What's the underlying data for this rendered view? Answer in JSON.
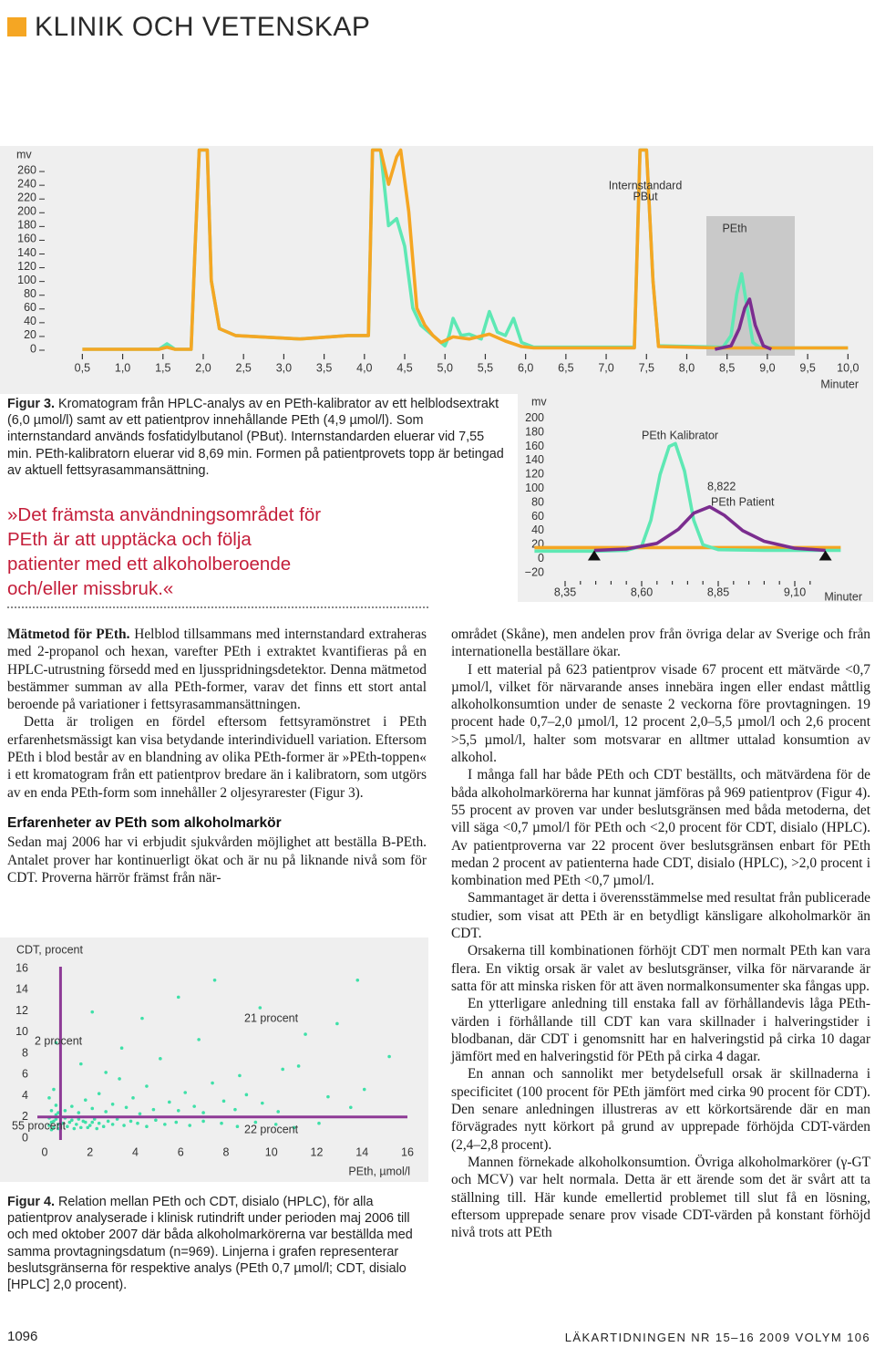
{
  "header": {
    "title": "KLINIK OCH VETENSKAP"
  },
  "chart_data": [
    {
      "type": "line",
      "y_label": "mv",
      "x_label": "Minuter",
      "xlim": [
        0.1,
        10.2
      ],
      "ylim": [
        0,
        280
      ],
      "yticks": [
        0,
        20,
        40,
        60,
        80,
        100,
        120,
        140,
        160,
        180,
        200,
        220,
        240,
        260
      ],
      "xticks": [
        {
          "value": 0.5,
          "label": "0,5"
        },
        {
          "value": 1.0,
          "label": "1,0"
        },
        {
          "value": 1.5,
          "label": "1,5"
        },
        {
          "value": 2.0,
          "label": "2,0"
        },
        {
          "value": 2.5,
          "label": "2,5"
        },
        {
          "value": 3.0,
          "label": "3,0"
        },
        {
          "value": 3.5,
          "label": "3,5"
        },
        {
          "value": 4.0,
          "label": "4,0"
        },
        {
          "value": 4.5,
          "label": "4,5"
        },
        {
          "value": 5.0,
          "label": "5,0"
        },
        {
          "value": 5.5,
          "label": "5,5"
        },
        {
          "value": 6.0,
          "label": "6,0"
        },
        {
          "value": 6.5,
          "label": "6,5"
        },
        {
          "value": 7.0,
          "label": "7,0"
        },
        {
          "value": 7.5,
          "label": "7,5"
        },
        {
          "value": 8.0,
          "label": "8,0"
        },
        {
          "value": 8.5,
          "label": "8,5"
        },
        {
          "value": 9.0,
          "label": "9,0"
        },
        {
          "value": 9.5,
          "label": "9,5"
        },
        {
          "value": 10.0,
          "label": "10,0"
        }
      ],
      "annotations": [
        "Internstandard",
        "PBut",
        "PEth"
      ],
      "series": [
        {
          "color": "#5ee8b4",
          "x": [
            0.5,
            1.45,
            1.55,
            1.65,
            1.85,
            1.9,
            1.95,
            2.05,
            2.1,
            2.2,
            2.4,
            3.2,
            3.8,
            4.05,
            4.1,
            4.2,
            4.3,
            4.4,
            4.5,
            4.6,
            4.7,
            4.8,
            4.9,
            5.0,
            5.05,
            5.1,
            5.2,
            5.3,
            5.45,
            5.55,
            5.65,
            5.75,
            5.85,
            5.95,
            6.1,
            7.35,
            7.42,
            7.5,
            7.58,
            7.65,
            8.45,
            8.55,
            8.62,
            8.68,
            8.75,
            8.82,
            8.9,
            9.1,
            10.0
          ],
          "values": [
            0,
            0,
            8,
            0,
            0,
            150,
            290,
            290,
            100,
            30,
            20,
            15,
            20,
            20,
            290,
            290,
            180,
            190,
            150,
            60,
            35,
            25,
            15,
            5,
            20,
            45,
            20,
            22,
            15,
            55,
            25,
            20,
            45,
            10,
            3,
            3,
            290,
            290,
            100,
            5,
            3,
            20,
            80,
            110,
            60,
            10,
            3,
            2,
            2
          ]
        },
        {
          "color": "#f5a623",
          "x": [
            0.5,
            1.45,
            1.55,
            1.65,
            1.85,
            1.9,
            1.95,
            2.05,
            2.1,
            2.2,
            2.4,
            3.2,
            3.8,
            4.05,
            4.1,
            4.2,
            4.3,
            4.4,
            4.45,
            4.55,
            4.65,
            4.75,
            4.85,
            4.95,
            5.1,
            5.3,
            5.55,
            5.75,
            5.95,
            6.1,
            7.35,
            7.42,
            7.5,
            7.58,
            7.65,
            8.4,
            9.1,
            10.0
          ],
          "values": [
            0,
            0,
            3,
            0,
            0,
            150,
            290,
            290,
            100,
            30,
            20,
            15,
            20,
            20,
            290,
            290,
            240,
            280,
            290,
            200,
            60,
            35,
            20,
            10,
            18,
            15,
            22,
            12,
            4,
            2,
            2,
            290,
            290,
            100,
            4,
            2,
            2,
            2
          ]
        },
        {
          "color": "#7b2d8f",
          "x": [
            8.35,
            8.55,
            8.65,
            8.72,
            8.78,
            8.85,
            8.95,
            9.05
          ],
          "values": [
            0,
            5,
            30,
            60,
            73,
            35,
            5,
            0
          ]
        }
      ]
    },
    {
      "type": "line",
      "y_label": "mv",
      "x_label": "Minuter",
      "xlim": [
        8.25,
        9.25
      ],
      "ylim": [
        -25,
        210
      ],
      "yticks": [
        {
          "value": -20,
          "label": "−20"
        },
        0,
        20,
        40,
        60,
        80,
        100,
        120,
        140,
        160,
        180,
        200
      ],
      "xticks": [
        {
          "value": 8.35,
          "label": "8,35"
        },
        {
          "value": 8.6,
          "label": "8,60"
        },
        {
          "value": 8.85,
          "label": "8,85"
        },
        {
          "value": 9.1,
          "label": "9,10"
        }
      ],
      "x_minor_ticks": [
        8.4,
        8.45,
        8.5,
        8.55,
        8.65,
        8.7,
        8.75,
        8.8,
        8.9,
        8.95,
        9.0,
        9.05,
        9.15
      ],
      "annotations": [
        "PEth Kalibrator",
        "8,822",
        "PEth Patient"
      ],
      "baseline_markers": {
        "x": [
          8.445,
          9.2
        ],
        "values": [
          12,
          12
        ]
      },
      "series": [
        {
          "color": "#f5a623",
          "x": [
            8.25,
            9.25
          ],
          "values": [
            16,
            16
          ]
        },
        {
          "color": "#5ee8b4",
          "x": [
            8.25,
            8.45,
            8.55,
            8.6,
            8.63,
            8.66,
            8.69,
            8.71,
            8.74,
            8.77,
            8.8,
            8.85,
            9.0,
            9.25
          ],
          "values": [
            11,
            11,
            12,
            18,
            55,
            120,
            160,
            164,
            125,
            55,
            20,
            13,
            12,
            12
          ]
        },
        {
          "color": "#7b2d8f",
          "x": [
            8.445,
            8.55,
            8.65,
            8.72,
            8.77,
            8.822,
            8.87,
            8.93,
            9.0,
            9.1,
            9.2
          ],
          "values": [
            12,
            14,
            22,
            42,
            65,
            74,
            62,
            40,
            25,
            15,
            12
          ]
        }
      ]
    },
    {
      "type": "scatter",
      "y_label": "CDT, procent",
      "x_label": "PEth, µmol/l",
      "xlim": [
        0,
        16
      ],
      "ylim": [
        0,
        16
      ],
      "xticks": [
        0,
        2,
        4,
        6,
        8,
        10,
        12,
        14,
        16
      ],
      "yticks": [
        0,
        2,
        4,
        6,
        8,
        10,
        12,
        14,
        16
      ],
      "color": "#3ee0a8",
      "threshold_color": "#8e3a96",
      "thresholds": {
        "x": 0.7,
        "y": 2.0
      },
      "annotations": [
        "2 procent",
        "21 procent",
        "22 procent",
        "55 procent"
      ],
      "x": [
        0.2,
        0.3,
        0.4,
        0.5,
        0.6,
        0.3,
        0.5,
        0.2,
        0.6,
        0.4,
        0.8,
        1.0,
        1.2,
        1.4,
        1.6,
        1.8,
        2.0,
        2.2,
        2.4,
        2.6,
        0.9,
        1.1,
        1.3,
        1.5,
        1.7,
        1.9,
        2.1,
        2.3,
        2.8,
        3.0,
        3.2,
        3.5,
        3.8,
        4.1,
        4.5,
        4.9,
        5.3,
        5.8,
        6.4,
        7.0,
        7.8,
        8.5,
        9.3,
        10.2,
        11.0,
        12.1,
        0.3,
        0.5,
        0.4,
        0.6,
        0.2,
        0.5,
        0.9,
        1.2,
        1.5,
        1.8,
        2.1,
        2.4,
        2.7,
        3.0,
        3.3,
        3.6,
        3.9,
        4.2,
        4.5,
        4.8,
        5.1,
        5.5,
        5.9,
        6.2,
        6.6,
        7.0,
        7.4,
        7.9,
        8.4,
        8.9,
        9.6,
        10.3,
        11.2,
        12.5,
        13.5,
        2.1,
        4.3,
        5.9,
        7.5,
        9.5,
        13.8,
        11.5,
        3.4,
        6.8,
        8.6,
        14.1,
        15.2,
        12.9,
        10.5,
        1.6,
        2.7
      ],
      "values": [
        1.2,
        1.5,
        1.0,
        1.8,
        1.3,
        0.8,
        2.2,
        1.9,
        0.9,
        1.6,
        1.4,
        1.1,
        1.7,
        1.3,
        1.0,
        1.5,
        1.2,
        1.8,
        1.4,
        1.1,
        1.9,
        1.5,
        0.9,
        1.8,
        1.6,
        1.0,
        1.5,
        0.9,
        1.6,
        1.3,
        1.8,
        1.2,
        1.6,
        1.4,
        1.1,
        1.7,
        1.3,
        1.5,
        1.2,
        1.6,
        1.4,
        1.1,
        1.5,
        1.3,
        1.0,
        1.4,
        2.6,
        3.1,
        4.6,
        2.4,
        3.8,
        9.0,
        2.6,
        3.0,
        2.4,
        3.6,
        2.8,
        4.2,
        2.5,
        3.2,
        5.6,
        2.9,
        3.8,
        2.3,
        4.9,
        2.7,
        7.5,
        3.4,
        2.6,
        4.3,
        3.0,
        2.4,
        5.2,
        3.5,
        2.7,
        4.1,
        3.3,
        2.5,
        6.8,
        3.9,
        2.9,
        11.9,
        11.3,
        13.3,
        14.9,
        12.3,
        14.9,
        9.8,
        8.5,
        9.3,
        5.9,
        4.6,
        7.7,
        10.8,
        6.5,
        7.0,
        6.2
      ]
    }
  ],
  "figure3_caption": {
    "label": "Figur 3.",
    "text": "Kromatogram från HPLC-analys av en PEth-kalibrator av ett helblodsextrakt (6,0 µmol/l) samt av ett patientprov innehållande PEth (4,9 µmol/l). Som internstandard används fosfatidylbutanol (PBut). Internstandarden eluerar vid 7,55 min. PEth-kalibratorn eluerar vid 8,69 min. Formen på patientprovets topp är betingad av aktuell fettsyrasammansättning."
  },
  "pull_quote": "»Det främsta användningsområdet för PEth är att upptäcka och följa patienter med ett alkoholberoende och/eller missbruk.«",
  "left_column": {
    "p0": {
      "lead": "Mätmetod för PEth.",
      "text": "Helblod tillsammans med internstandard extraheras med 2-propanol och hexan, varefter PEth i extraktet kvantifieras på en HPLC-utrustning försedd med en ljusspridningsdetektor. Denna mätmetod bestämmer summan av alla PEth-former, varav det finns ett stort antal beroende på variationer i fettsyrasammansättningen."
    },
    "p1": "Detta är troligen en fördel eftersom fettsyramönstret i PEth erfarenhetsmässigt kan visa betydande interindividuell variation. Eftersom PEth i blod består av en blandning av olika PEth-former är »PEth-toppen« i ett kromatogram från ett patientprov bredare än i kalibratorn, som utgörs av en enda PEth-form som innehåller 2 oljesyrarester (Figur 3).",
    "heading": "Erfarenheter av PEth som alkoholmarkör",
    "p2": "Sedan maj 2006 har vi erbjudit sjukvården möjlighet att beställa B-PEth. Antalet prover har kontinuerligt ökat och är nu på liknande nivå som för CDT. Proverna härrör främst från när-"
  },
  "right_column": [
    "området (Skåne), men andelen prov från övriga delar av Sverige och från internationella beställare ökar.",
    "I ett material på 623 patientprov visade 67 procent ett mätvärde <0,7 µmol/l, vilket för närvarande anses innebära ingen eller endast måttlig alkoholkonsumtion under de senaste 2 veckorna före provtagningen. 19 procent hade 0,7–2,0 µmol/l, 12 procent 2,0–5,5 µmol/l och 2,6 procent >5,5 µmol/l, halter som motsvarar en alltmer uttalad konsumtion av alkohol.",
    "I många fall har både PEth och CDT beställts, och mätvärdena för de båda alkoholmarkörerna har kunnat jämföras på 969 patientprov (Figur 4). 55 procent av proven var under beslutsgränsen med båda metoderna, det vill säga <0,7 µmol/l för PEth och <2,0 procent för CDT, disialo (HPLC). Av patientproverna var 22 procent över beslutsgränsen enbart för PEth medan 2 procent av patienterna hade CDT, disialo (HPLC), >2,0 procent i kombination med PEth <0,7 µmol/l.",
    "Sammantaget är detta i överensstämmelse med resultat från publicerade studier, som visat att PEth är en betydligt känsligare alkoholmarkör än CDT.",
    "Orsakerna till kombinationen förhöjt CDT men normalt PEth kan vara flera. En viktig orsak är valet av beslutsgränser, vilka för närvarande är satta för att minska risken för att även normalkonsumenter ska fångas upp.",
    "En ytterligare anledning till enstaka fall av förhållandevis låga PEth-värden i förhållande till CDT kan vara skillnader i halveringstider i blodbanan, där CDT i genomsnitt har en halveringstid på cirka 10 dagar jämfört med en halveringstid för PEth på cirka 4 dagar.",
    "En annan och sannolikt mer betydelsefull orsak är skillnaderna i specificitet (100 procent för PEth jämfört med cirka 90 procent för CDT). Den senare anledningen illustreras av ett körkortsärende där en man förvägrades nytt körkort på grund av upprepade förhöjda CDT-värden (2,4–2,8 procent).",
    "Mannen förnekade alkoholkonsumtion. Övriga alkoholmarkörer (γ-GT och MCV) var helt normala. Detta är ett ärende som det är svårt att ta ställning till. Här kunde emellertid problemet till slut få en lösning, eftersom upprepade senare prov visade CDT-värden på konstant förhöjd nivå trots att PEth"
  ],
  "figure4_caption": {
    "label": "Figur 4.",
    "text": "Relation mellan PEth och CDT, disialo (HPLC), för alla patientprov analyserade i klinisk rutindrift under perioden maj 2006 till och med oktober 2007 där båda alkoholmarkörerna var beställda med samma provtagningsdatum (n=969). Linjerna i grafen representerar beslutsgränserna för respektive analys (PEth 0,7 µmol/l; CDT, disialo [HPLC] 2,0 procent)."
  },
  "footer": {
    "page": "1096",
    "journal": "LÄKARTIDNINGEN NR 15–16 2009 VOLYM 106"
  }
}
